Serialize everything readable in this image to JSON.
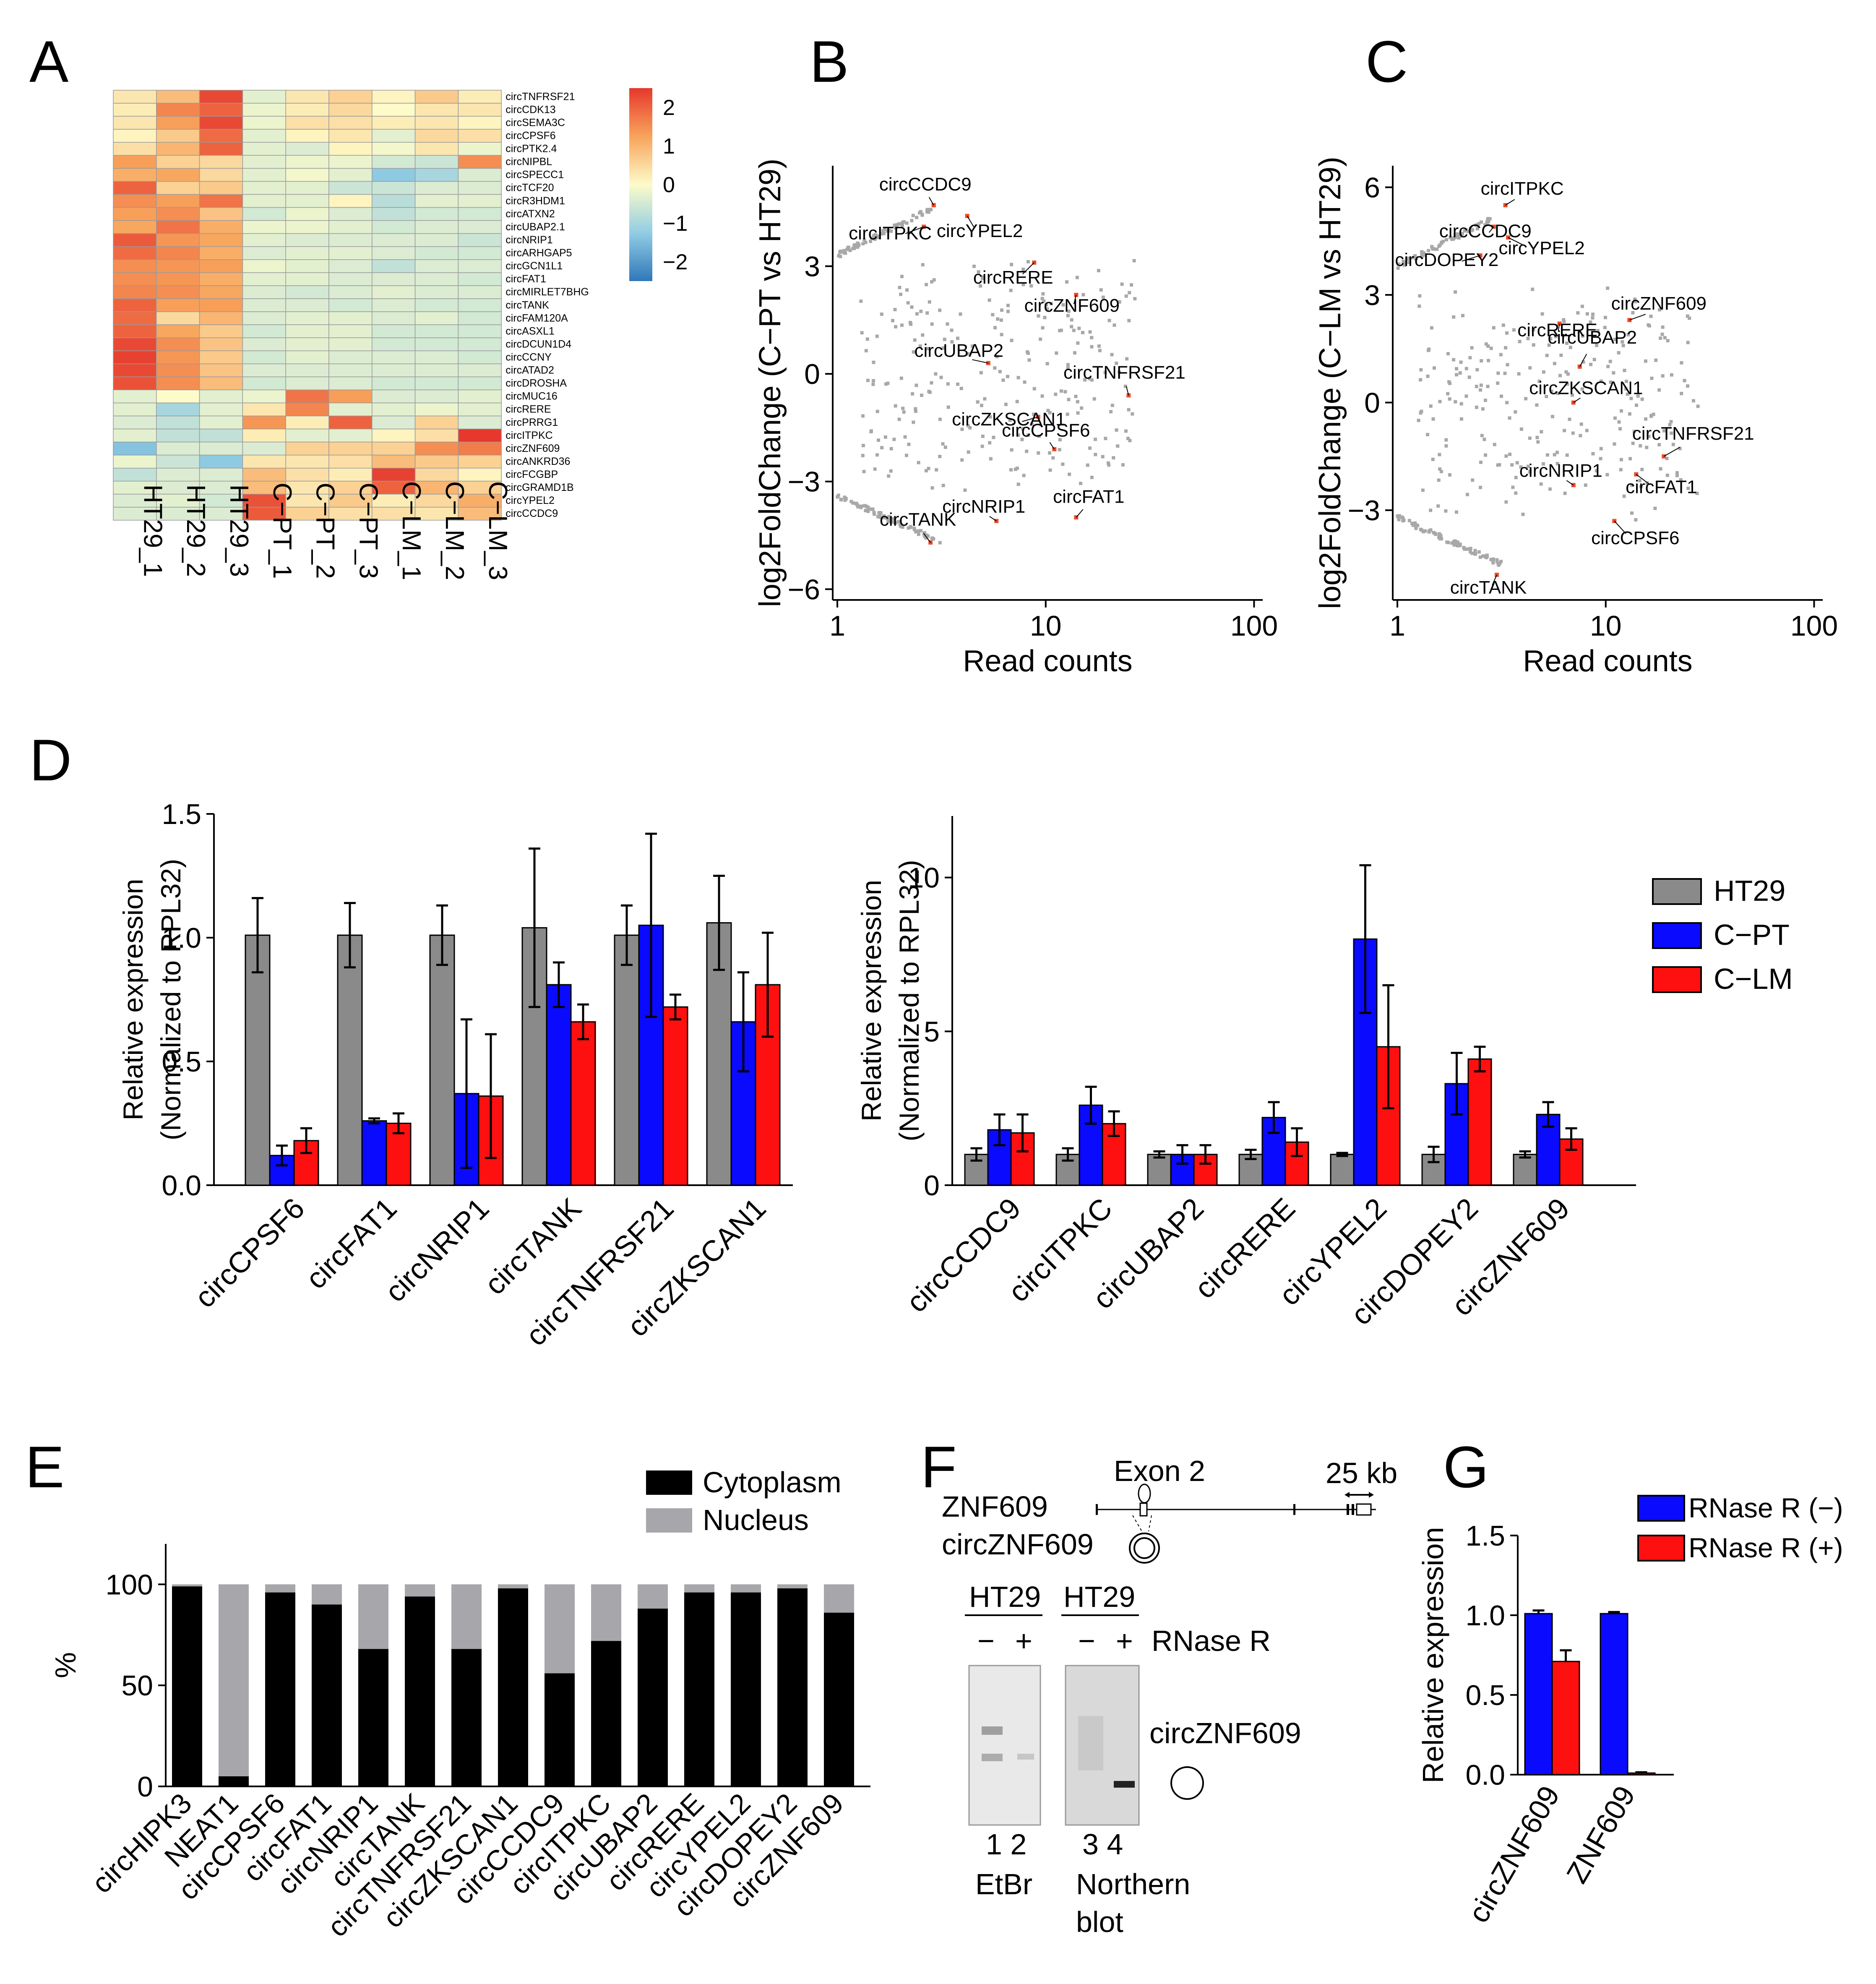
{
  "panel_letters": {
    "A": "A",
    "B": "B",
    "C": "C",
    "D": "D",
    "E": "E",
    "F": "F",
    "G": "G"
  },
  "colors": {
    "HT29": "#8a8a8a",
    "C-PT": "#0a0aff",
    "C-LM": "#ff1010",
    "cytoplasm": "#000000",
    "nucleus": "#a7a7ab",
    "highlight": "#f04a28",
    "grey_point": "#a8a8a8"
  },
  "chart_data": [
    {
      "id": "A",
      "type": "heatmap",
      "rows": [
        "circTNFRSF21",
        "circCDK13",
        "circSEMA3C",
        "circCPSF6",
        "circPTK2.4",
        "circNIPBL",
        "circSPECC1",
        "circTCF20",
        "circR3HDM1",
        "circATXN2",
        "circUBAP2.1",
        "circNRIP1",
        "circARHGAP5",
        "circGCN1L1",
        "circFAT1",
        "circMIRLET7BHG",
        "circTANK",
        "circFAM120A",
        "circASXL1",
        "circDCUN1D4",
        "circCCNY",
        "circATAD2",
        "circDROSHA",
        "circMUC16",
        "circRERE",
        "circPRRG1",
        "circITPKC",
        "circZNF609",
        "circANKRD36",
        "circFCGBP",
        "circGRAMD1B",
        "circYPEL2",
        "circCCDC9"
      ],
      "columns": [
        "HT29_1",
        "HT29_2",
        "HT29_3",
        "C−PT_1",
        "C−PT_2",
        "C−PT_3",
        "C−LM_1",
        "C−LM_2",
        "C−LM_3"
      ],
      "values": [
        [
          0.3,
          0.9,
          2.3,
          -0.3,
          0.3,
          0.6,
          0.1,
          0.7,
          0.2
        ],
        [
          0.2,
          1.6,
          2.0,
          -0.2,
          0.2,
          0.5,
          0.0,
          0.3,
          0.3
        ],
        [
          0.3,
          1.3,
          2.3,
          -0.2,
          0.4,
          0.4,
          0.2,
          0.3,
          0.1
        ],
        [
          0.1,
          0.7,
          1.9,
          -0.3,
          0.1,
          0.3,
          -0.3,
          0.5,
          0.4
        ],
        [
          0.4,
          1.0,
          2.0,
          -0.3,
          -0.4,
          0.1,
          -0.1,
          0.3,
          -0.2
        ],
        [
          1.3,
          0.6,
          0.5,
          -0.3,
          -0.2,
          -0.2,
          -0.5,
          -0.6,
          1.5
        ],
        [
          1.1,
          1.2,
          0.5,
          -0.3,
          -0.1,
          -0.3,
          -1.3,
          -1.0,
          -0.4
        ],
        [
          2.0,
          0.6,
          0.7,
          -0.3,
          -0.3,
          -0.6,
          -0.6,
          -0.4,
          -0.4
        ],
        [
          1.5,
          1.3,
          1.8,
          -0.3,
          -0.3,
          0.1,
          -0.8,
          -0.3,
          -0.3
        ],
        [
          1.3,
          1.5,
          0.8,
          -0.5,
          -0.2,
          -0.4,
          -0.7,
          -0.5,
          -0.5
        ],
        [
          1.2,
          1.8,
          1.1,
          -0.2,
          -0.2,
          -0.3,
          -0.5,
          -0.4,
          -0.4
        ],
        [
          2.1,
          1.4,
          1.2,
          -0.3,
          -0.4,
          -0.4,
          -0.4,
          -0.4,
          -0.6
        ],
        [
          1.9,
          1.6,
          1.1,
          -0.4,
          -0.3,
          -0.3,
          -0.4,
          -0.5,
          -0.5
        ],
        [
          1.5,
          1.4,
          1.3,
          -0.2,
          -0.3,
          -0.4,
          -0.7,
          -0.4,
          -0.4
        ],
        [
          1.5,
          1.4,
          1.1,
          -0.3,
          -0.3,
          -0.4,
          -0.4,
          -0.4,
          -0.5
        ],
        [
          1.6,
          1.5,
          1.2,
          -0.4,
          -0.5,
          -0.4,
          -0.3,
          -0.4,
          -0.4
        ],
        [
          2.0,
          1.3,
          1.3,
          -0.4,
          -0.4,
          -0.5,
          -0.4,
          -0.5,
          -0.5
        ],
        [
          1.9,
          0.5,
          1.0,
          -0.4,
          -0.3,
          -0.3,
          -0.4,
          -0.3,
          -0.5
        ],
        [
          2.0,
          1.2,
          0.7,
          -0.5,
          -0.3,
          -0.3,
          -0.5,
          -0.5,
          -0.5
        ],
        [
          2.3,
          1.5,
          0.8,
          -0.4,
          -0.3,
          -0.3,
          -0.5,
          -0.5,
          -0.5
        ],
        [
          2.4,
          1.4,
          0.7,
          -0.5,
          -0.3,
          -0.4,
          -0.4,
          -0.4,
          -0.5
        ],
        [
          2.3,
          1.5,
          0.8,
          -0.4,
          -0.4,
          -0.4,
          -0.4,
          -0.4,
          -0.4
        ],
        [
          2.2,
          1.5,
          0.9,
          -0.5,
          -0.4,
          -0.4,
          -0.5,
          -0.5,
          -0.5
        ],
        [
          -0.3,
          0.0,
          -0.3,
          -0.2,
          1.8,
          1.3,
          -0.4,
          -0.4,
          -0.3
        ],
        [
          -0.3,
          -1.0,
          -0.3,
          0.3,
          1.6,
          -0.3,
          -0.3,
          -0.2,
          -0.3
        ],
        [
          -0.4,
          -0.7,
          -0.3,
          1.4,
          0.2,
          2.0,
          -0.4,
          0.6,
          -0.4
        ],
        [
          -0.3,
          -0.7,
          -0.7,
          0.2,
          -0.3,
          -0.3,
          0.1,
          0.4,
          2.5
        ],
        [
          -1.4,
          -0.4,
          -0.4,
          -0.4,
          0.6,
          0.6,
          0.6,
          1.5,
          1.7
        ],
        [
          -0.2,
          -0.6,
          -1.3,
          0.3,
          0.3,
          0.4,
          0.9,
          0.7,
          0.6
        ],
        [
          -0.7,
          -0.4,
          -0.4,
          0.9,
          0.4,
          0.2,
          2.4,
          0.5,
          0.1
        ],
        [
          -0.3,
          -0.4,
          -0.4,
          0.9,
          0.3,
          0.6,
          2.0,
          1.0,
          0.6
        ],
        [
          -0.4,
          -0.3,
          -0.5,
          2.2,
          0.3,
          0.7,
          0.2,
          0.5,
          1.1
        ],
        [
          -0.4,
          -0.4,
          -0.4,
          2.1,
          0.6,
          0.4,
          0.4,
          0.3,
          0.9
        ]
      ],
      "colorbar": {
        "ticks": [
          "2",
          "1",
          "0",
          "−1",
          "−2"
        ],
        "range": [
          -2.5,
          2.5
        ]
      }
    },
    {
      "id": "B",
      "type": "scatter",
      "xlabel": "Read counts",
      "ylabel": "log2FoldChange (C−PT vs HT29)",
      "xscale": "log",
      "xlim": [
        0.95,
        110
      ],
      "ylim": [
        -6.3,
        5.8
      ],
      "xticks": [
        "1",
        "10",
        "100"
      ],
      "yticks": [
        "3",
        "0",
        "−3",
        "−6"
      ],
      "highlighted": [
        {
          "label": "circCCDC9",
          "x": 2.9,
          "y": 4.7
        },
        {
          "label": "circITPKC",
          "x": 2.6,
          "y": 4.1
        },
        {
          "label": "circYPEL2",
          "x": 4.2,
          "y": 4.4
        },
        {
          "label": "circRERE",
          "x": 8.8,
          "y": 3.1
        },
        {
          "label": "circZNF609",
          "x": 14.0,
          "y": 2.2
        },
        {
          "label": "circUBAP2",
          "x": 5.3,
          "y": 0.3
        },
        {
          "label": "circTNFRSF21",
          "x": 25.0,
          "y": -0.6
        },
        {
          "label": "circZKSCAN1",
          "x": 9.2,
          "y": -1.2
        },
        {
          "label": "circCPSF6",
          "x": 11.0,
          "y": -2.1
        },
        {
          "label": "circNRIP1",
          "x": 5.8,
          "y": -4.1
        },
        {
          "label": "circFAT1",
          "x": 14.0,
          "y": -4.0
        },
        {
          "label": "circTANK",
          "x": 2.8,
          "y": -4.7
        }
      ]
    },
    {
      "id": "C",
      "type": "scatter",
      "xlabel": "Read counts",
      "ylabel": "log2FoldChange (C−LM vs HT29)",
      "xscale": "log",
      "xlim": [
        0.95,
        110
      ],
      "ylim": [
        -5.5,
        6.6
      ],
      "xticks": [
        "1",
        "10",
        "100"
      ],
      "yticks": [
        "6",
        "3",
        "0",
        "−3"
      ],
      "highlighted": [
        {
          "label": "circITPKC",
          "x": 3.3,
          "y": 5.5
        },
        {
          "label": "circCCDC9",
          "x": 2.9,
          "y": 4.9
        },
        {
          "label": "circYPEL2",
          "x": 3.4,
          "y": 4.6
        },
        {
          "label": "circDOPEY2",
          "x": 2.5,
          "y": 4.1
        },
        {
          "label": "circZNF609",
          "x": 13.0,
          "y": 2.3
        },
        {
          "label": "circRERE",
          "x": 6.0,
          "y": 2.2
        },
        {
          "label": "circUBAP2",
          "x": 7.5,
          "y": 1.0
        },
        {
          "label": "circZKSCAN1",
          "x": 7.0,
          "y": 0.0
        },
        {
          "label": "circTNFRSF21",
          "x": 19.0,
          "y": -1.5
        },
        {
          "label": "circNRIP1",
          "x": 7.0,
          "y": -2.3
        },
        {
          "label": "circFAT1",
          "x": 14.0,
          "y": -2.0
        },
        {
          "label": "circCPSF6",
          "x": 11.0,
          "y": -3.3
        },
        {
          "label": "circTANK",
          "x": 3.0,
          "y": -4.8
        }
      ]
    },
    {
      "id": "D-left",
      "type": "bar",
      "ylabel": "Relative expression (Normalized to RPL32)",
      "ylabel_lines": [
        "Relative expression",
        "(Normalized to RPL32)"
      ],
      "ylim": [
        0,
        1.5
      ],
      "yticks": [
        "1.5",
        "1.0",
        "0.5",
        "0.0"
      ],
      "categories": [
        "circCPSF6",
        "circFAT1",
        "circNRIP1",
        "circTANK",
        "circTNFRSF21",
        "circZKSCAN1"
      ],
      "series": [
        {
          "name": "HT29",
          "values": [
            1.01,
            1.01,
            1.01,
            1.04,
            1.01,
            1.06
          ],
          "errors": [
            0.15,
            0.13,
            0.12,
            0.32,
            0.12,
            0.19
          ]
        },
        {
          "name": "C−PT",
          "values": [
            0.12,
            0.26,
            0.37,
            0.81,
            1.05,
            0.66
          ],
          "errors": [
            0.04,
            0.01,
            0.3,
            0.09,
            0.37,
            0.2
          ]
        },
        {
          "name": "C−LM",
          "values": [
            0.18,
            0.25,
            0.36,
            0.66,
            0.72,
            0.81
          ],
          "errors": [
            0.05,
            0.04,
            0.25,
            0.07,
            0.05,
            0.21
          ]
        }
      ]
    },
    {
      "id": "D-right",
      "type": "bar",
      "ylabel": "Relative expression (Normalized to RPL32)",
      "ylabel_lines": [
        "Relative expression",
        "(Normalized to RPL32)"
      ],
      "ylim": [
        0,
        12
      ],
      "yticks": [
        "10",
        "5",
        "0"
      ],
      "categories": [
        "circCCDC9",
        "circITPKC",
        "circUBAP2",
        "circRERE",
        "circYPEL2",
        "circDOPEY2",
        "circZNF609"
      ],
      "series": [
        {
          "name": "HT29",
          "values": [
            1.0,
            1.0,
            1.0,
            1.0,
            1.0,
            1.0,
            1.0
          ],
          "errors": [
            0.2,
            0.2,
            0.1,
            0.15,
            0.05,
            0.25,
            0.1
          ]
        },
        {
          "name": "C−PT",
          "values": [
            1.8,
            2.6,
            1.0,
            2.2,
            8.0,
            3.3,
            2.3
          ],
          "errors": [
            0.5,
            0.6,
            0.3,
            0.5,
            2.4,
            1.0,
            0.4
          ]
        },
        {
          "name": "C−LM",
          "values": [
            1.7,
            2.0,
            1.0,
            1.4,
            4.5,
            4.1,
            1.5
          ],
          "errors": [
            0.6,
            0.4,
            0.3,
            0.45,
            2.0,
            0.4,
            0.35
          ]
        }
      ],
      "legend": [
        "HT29",
        "C−PT",
        "C−LM"
      ]
    },
    {
      "id": "E",
      "type": "bar",
      "stacked": true,
      "ylabel": "%",
      "ylim": [
        0,
        120
      ],
      "yticks": [
        "100",
        "50",
        "0"
      ],
      "categories": [
        "circHIPK3",
        "NEAT1",
        "circCPSF6",
        "circFAT1",
        "circNRIP1",
        "circTANK",
        "circTNFRSF21",
        "circZKSCAN1",
        "circCCDC9",
        "circITPKC",
        "circUBAP2",
        "circRERE",
        "circYPEL2",
        "circDOPEY2",
        "circZNF609"
      ],
      "series": [
        {
          "name": "Cytoplasm",
          "values": [
            99,
            5,
            96,
            90,
            68,
            94,
            68,
            98,
            56,
            72,
            88,
            96,
            96,
            98,
            86
          ]
        },
        {
          "name": "Nucleus",
          "values": [
            1,
            95,
            4,
            10,
            32,
            6,
            32,
            2,
            44,
            28,
            12,
            4,
            4,
            2,
            14
          ]
        }
      ]
    },
    {
      "id": "G",
      "type": "bar",
      "ylabel": "Relative expression",
      "ylim": [
        0,
        1.5
      ],
      "yticks": [
        "1.5",
        "1.0",
        "0.5",
        "0.0"
      ],
      "categories": [
        "circZNF609",
        "ZNF609"
      ],
      "series": [
        {
          "name": "RNase R (−)",
          "values": [
            1.01,
            1.01
          ],
          "errors": [
            0.02,
            0.01
          ]
        },
        {
          "name": "RNase R (+)",
          "values": [
            0.71,
            0.01
          ],
          "errors": [
            0.07,
            0.005
          ]
        }
      ]
    }
  ],
  "panel_F": {
    "gene": "ZNF609",
    "circ": "circZNF609",
    "exon_label": "Exon 2",
    "scale_label": "25 kb",
    "lane_header_left": "HT29",
    "lane_header_right": "HT29",
    "minus": "−",
    "plus": "+",
    "rnase_label": "RNase R",
    "band_label": "circZNF609",
    "lane_numbers_left": "1 2",
    "lane_numbers_right": "3 4",
    "left_caption": "EtBr",
    "right_caption_1": "Northern",
    "right_caption_2": "blot"
  }
}
